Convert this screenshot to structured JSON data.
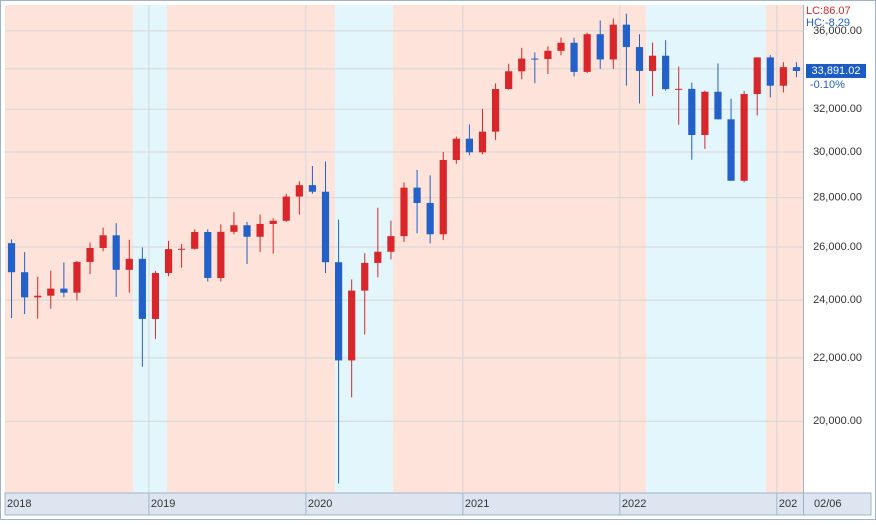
{
  "chart_data": {
    "type": "candlestick",
    "categories": [
      "2018",
      null,
      null,
      null,
      null,
      null,
      null,
      null,
      null,
      null,
      null,
      "2019",
      null,
      null,
      null,
      null,
      null,
      null,
      null,
      null,
      null,
      null,
      null,
      "2020",
      null,
      null,
      null,
      null,
      null,
      null,
      null,
      null,
      null,
      null,
      null,
      "2021",
      null,
      null,
      null,
      null,
      null,
      null,
      null,
      null,
      null,
      null,
      null,
      "2022",
      null,
      null,
      null,
      null,
      null,
      null,
      null,
      null,
      null,
      null,
      null,
      "202",
      null
    ],
    "open": [
      26150,
      25030,
      24100,
      24160,
      24420,
      24270,
      25420,
      25960,
      26460,
      25120,
      25540,
      23330,
      25000,
      25916,
      25929,
      26593,
      24815,
      26600,
      26864,
      26403,
      26917,
      27046,
      28051,
      28538,
      28256,
      25409,
      21917,
      24346,
      25383,
      25813,
      26428,
      28430,
      27782,
      26502,
      29639,
      30606,
      29983,
      30932,
      32982,
      33874,
      34529,
      34503,
      34935,
      35361,
      33844,
      35820,
      34484,
      36338,
      35132,
      33893,
      34678,
      32977,
      32990,
      30775,
      32845,
      31510,
      28726,
      32733,
      34590,
      33147,
      34086
    ],
    "high": [
      26300,
      25800,
      24860,
      25090,
      25400,
      25460,
      26170,
      26770,
      26950,
      26280,
      25980,
      25080,
      26240,
      26110,
      26700,
      26700,
      26900,
      27400,
      27000,
      27300,
      27150,
      28170,
      28700,
      29370,
      29570,
      27100,
      24760,
      25760,
      27580,
      27050,
      28650,
      29200,
      28960,
      30000,
      30700,
      31270,
      32010,
      33260,
      34260,
      35090,
      34850,
      35170,
      35630,
      35630,
      35900,
      36570,
      36680,
      36950,
      35820,
      35370,
      35500,
      34120,
      33300,
      32900,
      34280,
      32500,
      32880,
      34590,
      34710,
      34340,
      34340
    ],
    "low": [
      23360,
      23500,
      23340,
      23690,
      24100,
      23990,
      24960,
      25830,
      24120,
      24270,
      21710,
      22640,
      24880,
      25200,
      25900,
      24680,
      24680,
      26500,
      25340,
      25800,
      25740,
      27000,
      27300,
      28170,
      25000,
      18210,
      20730,
      22790,
      24840,
      25520,
      26200,
      26540,
      26140,
      26270,
      29470,
      29850,
      29900,
      30550,
      32950,
      33470,
      33270,
      33740,
      34700,
      33610,
      33790,
      34000,
      34000,
      33150,
      32270,
      32630,
      32900,
      31250,
      29650,
      30140,
      31500,
      28720,
      28660,
      31700,
      32570,
      32810,
      33580
    ],
    "close": [
      25030,
      24100,
      24160,
      24420,
      24270,
      25420,
      25960,
      26460,
      25120,
      25540,
      23330,
      24999,
      25916,
      25929,
      26593,
      24815,
      26600,
      26864,
      26403,
      26917,
      27046,
      28051,
      28538,
      28256,
      25409,
      21917,
      24346,
      25383,
      25813,
      26428,
      28430,
      27782,
      26502,
      29639,
      30606,
      29983,
      30932,
      32982,
      33874,
      34529,
      34503,
      34935,
      35361,
      33844,
      35820,
      34484,
      36338,
      35132,
      33893,
      34678,
      32977,
      32990,
      30775,
      32845,
      31510,
      28726,
      32733,
      34590,
      33147,
      34086,
      33891
    ],
    "up_color": "#d8262a",
    "down_color": "#2360c8",
    "log_scale": true,
    "grid": true,
    "ylim": [
      17950,
      37430
    ],
    "yticks": [
      {
        "value": 20000,
        "label": "20,000.00"
      },
      {
        "value": 22000,
        "label": "22,000.00"
      },
      {
        "value": 24000,
        "label": "24,000.00"
      },
      {
        "value": 26000,
        "label": "26,000.00"
      },
      {
        "value": 28000,
        "label": "28,000.00"
      },
      {
        "value": 30000,
        "label": "30,000.00"
      },
      {
        "value": 32000,
        "label": "32,000.00"
      },
      {
        "value": 34000,
        "label": "34,000.00"
      },
      {
        "value": 36000,
        "label": "36,000.00"
      }
    ],
    "lc_label": "LC:86.07",
    "hc_label": "HC:-8.29",
    "last_price": "33,891.02",
    "change": "-0.10%",
    "date_label": "02/06"
  }
}
